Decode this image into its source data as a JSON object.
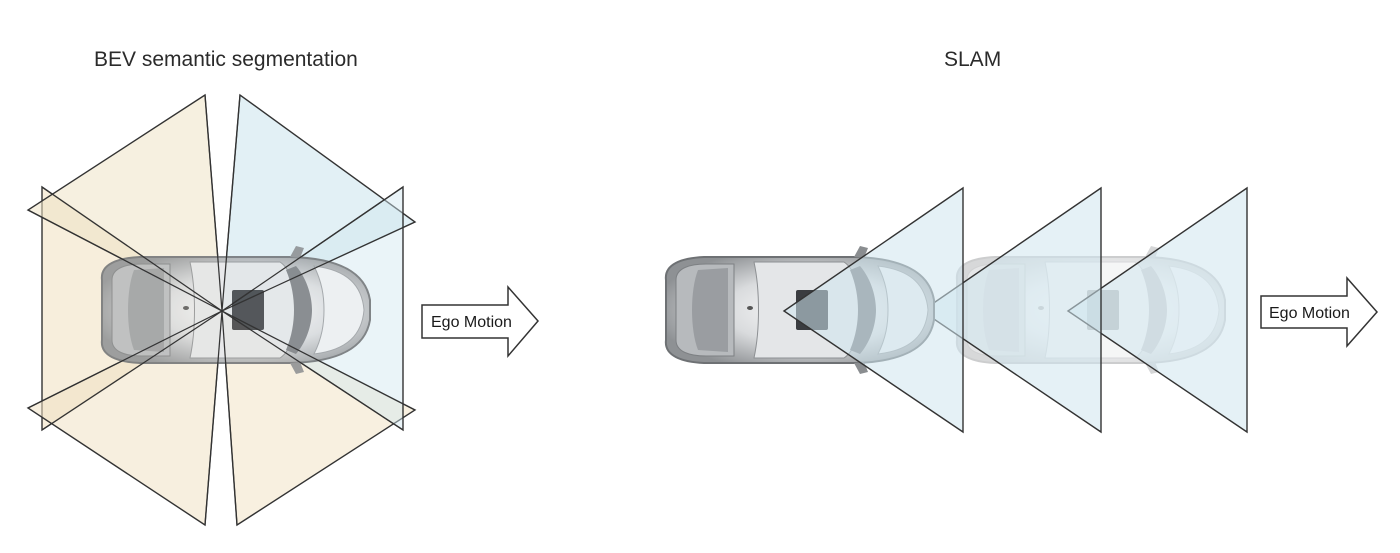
{
  "panels": {
    "left": {
      "title": "BEV semantic segmentation",
      "arrow_label": "Ego Motion"
    },
    "right": {
      "title": "SLAM",
      "arrow_label": "Ego Motion"
    }
  },
  "colors": {
    "frustum_blue": "#cfe6ef",
    "frustum_tan": "#f1e2c4",
    "outline": "#333333",
    "car_body": "#d4d6d8",
    "car_glass": "#4a4c50"
  }
}
